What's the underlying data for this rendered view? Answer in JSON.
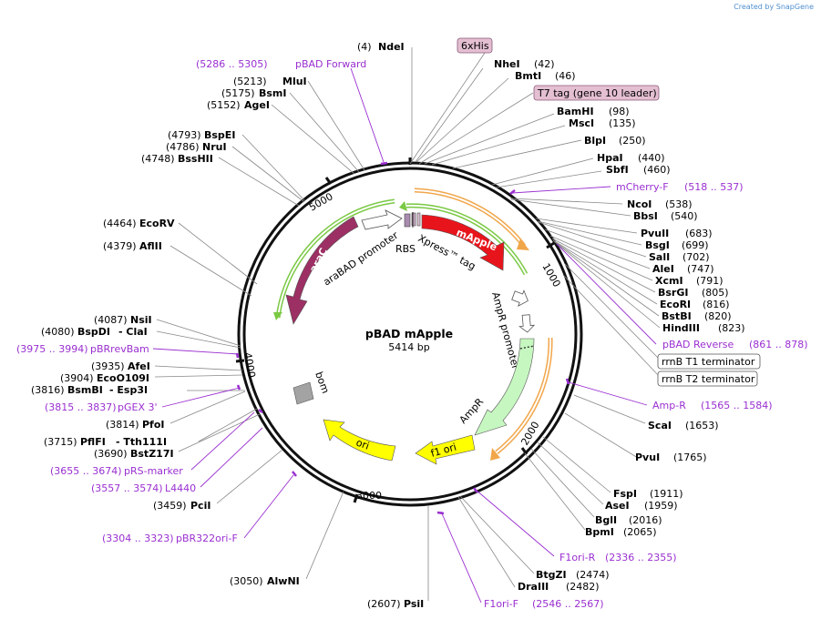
{
  "credit": {
    "prefix": "Created by",
    "brand": "SnapGene"
  },
  "plasmid": {
    "name": "pBAD mApple",
    "size": "5414 bp"
  },
  "tick_labels": [
    "1000",
    "2000",
    "3000",
    "4000",
    "5000"
  ],
  "sites": [
    {
      "pos": "(4)",
      "name": "NdeI"
    },
    {
      "pos": "(42)",
      "name": "NheI"
    },
    {
      "pos": "(46)",
      "name": "BmtI"
    },
    {
      "pos": "(98)",
      "name": "BamHI"
    },
    {
      "pos": "(135)",
      "name": "MscI"
    },
    {
      "pos": "(250)",
      "name": "BlpI"
    },
    {
      "pos": "(440)",
      "name": "HpaI"
    },
    {
      "pos": "(460)",
      "name": "SbfI"
    },
    {
      "pos": "(538)",
      "name": "NcoI"
    },
    {
      "pos": "(540)",
      "name": "BbsI"
    },
    {
      "pos": "(683)",
      "name": "PvuII"
    },
    {
      "pos": "(699)",
      "name": "BsgI"
    },
    {
      "pos": "(702)",
      "name": "SalI"
    },
    {
      "pos": "(747)",
      "name": "AleI"
    },
    {
      "pos": "(791)",
      "name": "XcmI"
    },
    {
      "pos": "(805)",
      "name": "BsrGI"
    },
    {
      "pos": "(816)",
      "name": "EcoRI"
    },
    {
      "pos": "(820)",
      "name": "BstBI"
    },
    {
      "pos": "(823)",
      "name": "HindIII"
    },
    {
      "pos": "(1653)",
      "name": "ScaI"
    },
    {
      "pos": "(1765)",
      "name": "PvuI"
    },
    {
      "pos": "(1911)",
      "name": "FspI"
    },
    {
      "pos": "(1959)",
      "name": "AseI"
    },
    {
      "pos": "(2016)",
      "name": "BglI"
    },
    {
      "pos": "(2065)",
      "name": "BpmI"
    },
    {
      "pos": "(2474)",
      "name": "BtgZI"
    },
    {
      "pos": "(2482)",
      "name": "DraIII"
    },
    {
      "pos": "(2607)",
      "name": "PsiI"
    },
    {
      "pos": "(3050)",
      "name": "AlwNI"
    },
    {
      "pos": "(3459)",
      "name": "PciI"
    },
    {
      "pos": "(3690)",
      "name": "BstZ17I"
    },
    {
      "pos": "(3715)",
      "name": "PflFI",
      "name2": "- Tth111I"
    },
    {
      "pos": "(3814)",
      "name": "PfoI"
    },
    {
      "pos": "(3816)",
      "name": "BsmBI",
      "name2": "- Esp3I"
    },
    {
      "pos": "(3904)",
      "name": "EcoO109I"
    },
    {
      "pos": "(3935)",
      "name": "AfeI"
    },
    {
      "pos": "(4080)",
      "name": "BspDI",
      "name2": "- ClaI"
    },
    {
      "pos": "(4087)",
      "name": "NsiI"
    },
    {
      "pos": "(4379)",
      "name": "AflII"
    },
    {
      "pos": "(4464)",
      "name": "EcoRV"
    },
    {
      "pos": "(4748)",
      "name": "BssHII"
    },
    {
      "pos": "(4786)",
      "name": "NruI"
    },
    {
      "pos": "(4793)",
      "name": "BspEI"
    },
    {
      "pos": "(5152)",
      "name": "AgeI"
    },
    {
      "pos": "(5175)",
      "name": "BsmI"
    },
    {
      "pos": "(5213)",
      "name": "MluI"
    }
  ],
  "primers": [
    {
      "range": "(5286 .. 5305)",
      "name": "pBAD Forward"
    },
    {
      "name": "mCherry-F",
      "range": "(518 .. 537)"
    },
    {
      "name": "pBAD Reverse",
      "range": "(861 .. 878)"
    },
    {
      "name": "Amp-R",
      "range": "(1565 .. 1584)"
    },
    {
      "name": "F1ori-R",
      "range": "(2336 .. 2355)"
    },
    {
      "name": "F1ori-F",
      "range": "(2546 .. 2567)"
    },
    {
      "range": "(3304 .. 3323)",
      "name": "pBR322ori-F"
    },
    {
      "range": "(3557 .. 3574)",
      "name": "L4440"
    },
    {
      "range": "(3655 .. 3674)",
      "name": "pRS-marker"
    },
    {
      "range": "(3815 .. 3837)",
      "name": "pGEX 3'"
    },
    {
      "range": "(3975 .. 3994)",
      "name": "pBRrevBam"
    }
  ],
  "boxed_features": [
    "6xHis",
    "T7 tag (gene 10 leader)",
    "rrnB T1 terminator",
    "rrnB T2 terminator"
  ],
  "map_features": [
    "mApple",
    "Xpress™ tag",
    "araC",
    "araBAD promoter",
    "RBS",
    "AmpR promoter",
    "AmpR",
    "f1 ori",
    "ori",
    "bom"
  ],
  "colors": {
    "primer": "#9a2fd0",
    "mApple": "#e8141c",
    "araC": "#9c2f63",
    "AmpR": "#c6f7c0",
    "ori": "#ffff00",
    "bom": "#a3a3a3"
  }
}
